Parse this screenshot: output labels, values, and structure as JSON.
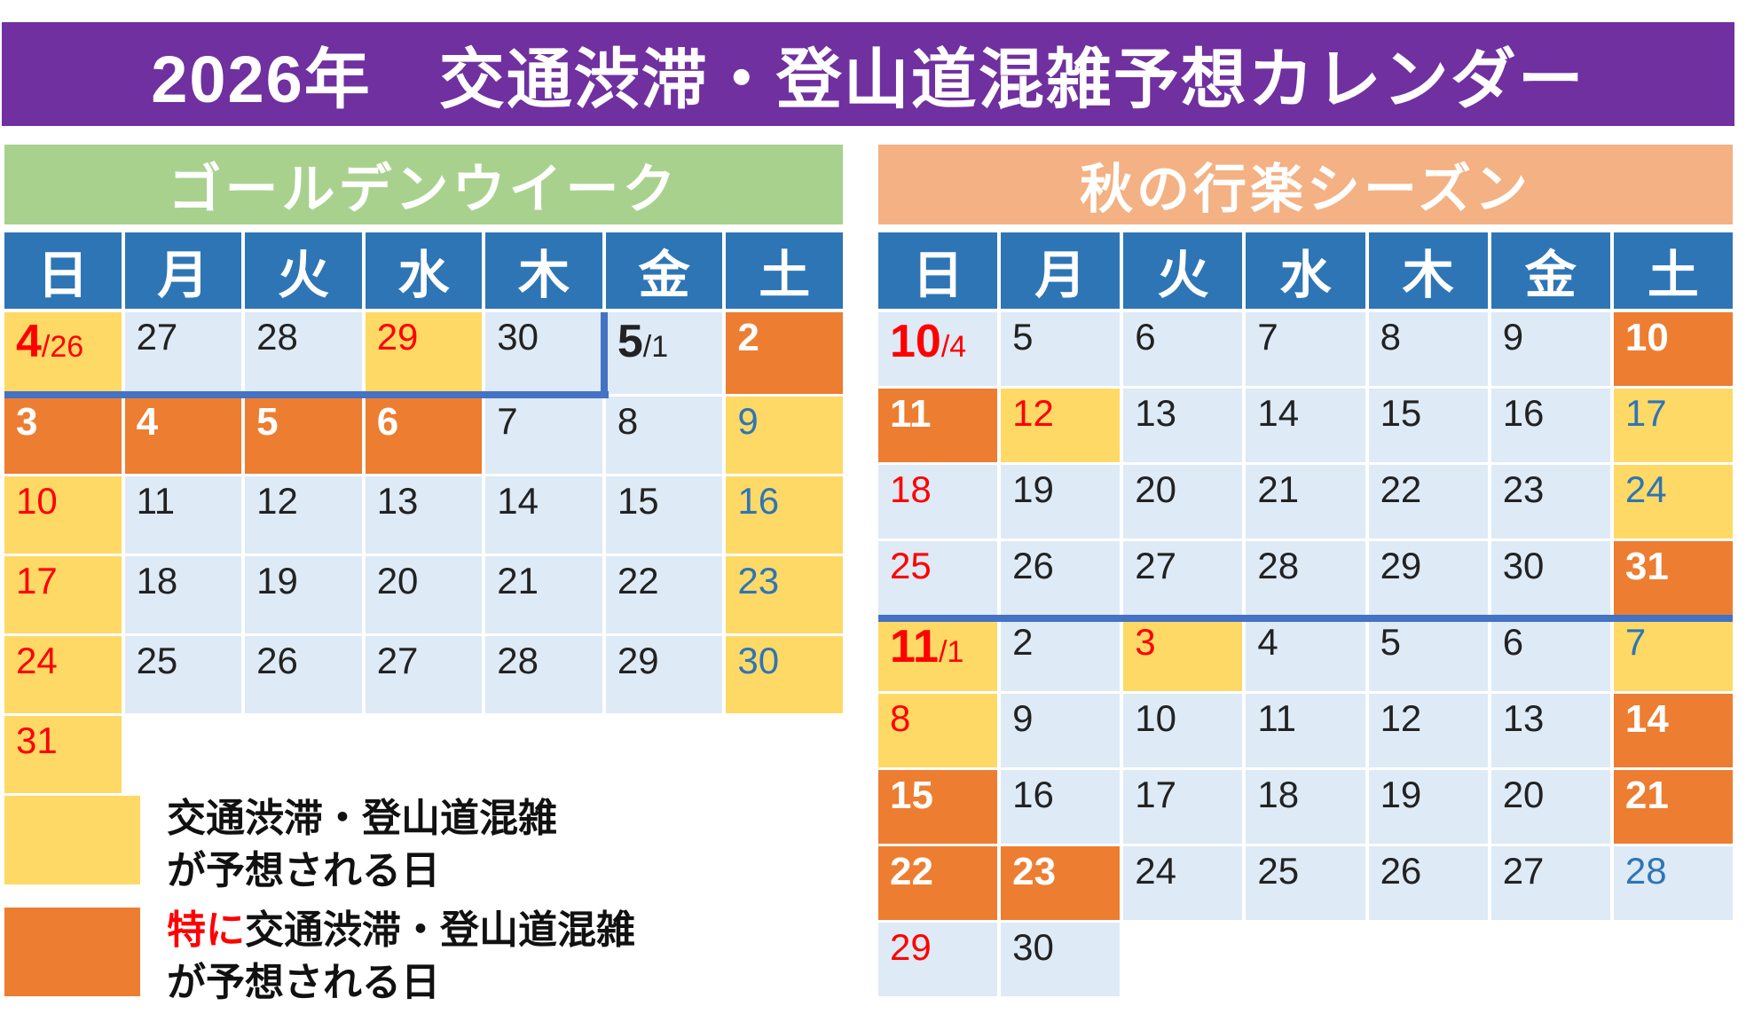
{
  "title": "2026年　交通渋滞・登山道混雑予想カレンダー",
  "weekdays": [
    "日",
    "月",
    "火",
    "水",
    "木",
    "金",
    "土"
  ],
  "colors": {
    "banner_purple": "#7030A0",
    "weekday_header_blue": "#2E75B6",
    "golden_week_green": "#A9D18E",
    "autumn_salmon": "#F4B183",
    "day_plain_blue": "#DEEAF6",
    "day_busy_yellow": "#FFD966",
    "day_peak_orange": "#ED7D31",
    "sunday_red": "#FF0000",
    "saturday_blue": "#2E75B6",
    "month_divider_blue": "#4472C4"
  },
  "calendars": [
    {
      "season_label": "ゴールデンウイーク",
      "rows": [
        [
          {
            "m": "4",
            "d": "/26",
            "bg": "busy",
            "fg": "red",
            "bold": true
          },
          {
            "d": "27",
            "bg": "plain",
            "fg": "black"
          },
          {
            "d": "28",
            "bg": "plain",
            "fg": "black"
          },
          {
            "d": "29",
            "bg": "busy",
            "fg": "red"
          },
          {
            "d": "30",
            "bg": "plain",
            "fg": "black"
          },
          {
            "m": "5",
            "d": "/1",
            "bg": "plain",
            "fg": "black",
            "bold": true
          },
          {
            "d": "2",
            "bg": "peak",
            "fg": "white",
            "bold": true
          }
        ],
        [
          {
            "d": "3",
            "bg": "peak",
            "fg": "white",
            "bold": true
          },
          {
            "d": "4",
            "bg": "peak",
            "fg": "white",
            "bold": true
          },
          {
            "d": "5",
            "bg": "peak",
            "fg": "white",
            "bold": true
          },
          {
            "d": "6",
            "bg": "peak",
            "fg": "white",
            "bold": true
          },
          {
            "d": "7",
            "bg": "plain",
            "fg": "black"
          },
          {
            "d": "8",
            "bg": "plain",
            "fg": "black"
          },
          {
            "d": "9",
            "bg": "busy",
            "fg": "blue"
          }
        ],
        [
          {
            "d": "10",
            "bg": "busy",
            "fg": "red"
          },
          {
            "d": "11",
            "bg": "plain",
            "fg": "black"
          },
          {
            "d": "12",
            "bg": "plain",
            "fg": "black"
          },
          {
            "d": "13",
            "bg": "plain",
            "fg": "black"
          },
          {
            "d": "14",
            "bg": "plain",
            "fg": "black"
          },
          {
            "d": "15",
            "bg": "plain",
            "fg": "black"
          },
          {
            "d": "16",
            "bg": "busy",
            "fg": "blue"
          }
        ],
        [
          {
            "d": "17",
            "bg": "busy",
            "fg": "red"
          },
          {
            "d": "18",
            "bg": "plain",
            "fg": "black"
          },
          {
            "d": "19",
            "bg": "plain",
            "fg": "black"
          },
          {
            "d": "20",
            "bg": "plain",
            "fg": "black"
          },
          {
            "d": "21",
            "bg": "plain",
            "fg": "black"
          },
          {
            "d": "22",
            "bg": "plain",
            "fg": "black"
          },
          {
            "d": "23",
            "bg": "busy",
            "fg": "blue"
          }
        ],
        [
          {
            "d": "24",
            "bg": "busy",
            "fg": "red"
          },
          {
            "d": "25",
            "bg": "plain",
            "fg": "black"
          },
          {
            "d": "26",
            "bg": "plain",
            "fg": "black"
          },
          {
            "d": "27",
            "bg": "plain",
            "fg": "black"
          },
          {
            "d": "28",
            "bg": "plain",
            "fg": "black"
          },
          {
            "d": "29",
            "bg": "plain",
            "fg": "black"
          },
          {
            "d": "30",
            "bg": "busy",
            "fg": "blue"
          }
        ],
        [
          {
            "d": "31",
            "bg": "busy",
            "fg": "red"
          },
          null,
          null,
          null,
          null,
          null,
          null
        ]
      ]
    },
    {
      "season_label": "秋の行楽シーズン",
      "rows": [
        [
          {
            "m": "10",
            "d": "/4",
            "bg": "plain",
            "fg": "red",
            "bold": true
          },
          {
            "d": "5",
            "bg": "plain",
            "fg": "black"
          },
          {
            "d": "6",
            "bg": "plain",
            "fg": "black"
          },
          {
            "d": "7",
            "bg": "plain",
            "fg": "black"
          },
          {
            "d": "8",
            "bg": "plain",
            "fg": "black"
          },
          {
            "d": "9",
            "bg": "plain",
            "fg": "black"
          },
          {
            "d": "10",
            "bg": "peak",
            "fg": "white",
            "bold": true
          }
        ],
        [
          {
            "d": "11",
            "bg": "peak",
            "fg": "white",
            "bold": true
          },
          {
            "d": "12",
            "bg": "busy",
            "fg": "red"
          },
          {
            "d": "13",
            "bg": "plain",
            "fg": "black"
          },
          {
            "d": "14",
            "bg": "plain",
            "fg": "black"
          },
          {
            "d": "15",
            "bg": "plain",
            "fg": "black"
          },
          {
            "d": "16",
            "bg": "plain",
            "fg": "black"
          },
          {
            "d": "17",
            "bg": "busy",
            "fg": "blue"
          }
        ],
        [
          {
            "d": "18",
            "bg": "plain",
            "fg": "red"
          },
          {
            "d": "19",
            "bg": "plain",
            "fg": "black"
          },
          {
            "d": "20",
            "bg": "plain",
            "fg": "black"
          },
          {
            "d": "21",
            "bg": "plain",
            "fg": "black"
          },
          {
            "d": "22",
            "bg": "plain",
            "fg": "black"
          },
          {
            "d": "23",
            "bg": "plain",
            "fg": "black"
          },
          {
            "d": "24",
            "bg": "busy",
            "fg": "blue"
          }
        ],
        [
          {
            "d": "25",
            "bg": "plain",
            "fg": "red"
          },
          {
            "d": "26",
            "bg": "plain",
            "fg": "black"
          },
          {
            "d": "27",
            "bg": "plain",
            "fg": "black"
          },
          {
            "d": "28",
            "bg": "plain",
            "fg": "black"
          },
          {
            "d": "29",
            "bg": "plain",
            "fg": "black"
          },
          {
            "d": "30",
            "bg": "plain",
            "fg": "black"
          },
          {
            "d": "31",
            "bg": "peak",
            "fg": "white",
            "bold": true
          }
        ],
        [
          {
            "m": "11",
            "d": "/1",
            "bg": "busy",
            "fg": "red",
            "bold": true
          },
          {
            "d": "2",
            "bg": "plain",
            "fg": "black"
          },
          {
            "d": "3",
            "bg": "busy",
            "fg": "red"
          },
          {
            "d": "4",
            "bg": "plain",
            "fg": "black"
          },
          {
            "d": "5",
            "bg": "plain",
            "fg": "black"
          },
          {
            "d": "6",
            "bg": "plain",
            "fg": "black"
          },
          {
            "d": "7",
            "bg": "busy",
            "fg": "blue"
          }
        ],
        [
          {
            "d": "8",
            "bg": "busy",
            "fg": "red"
          },
          {
            "d": "9",
            "bg": "plain",
            "fg": "black"
          },
          {
            "d": "10",
            "bg": "plain",
            "fg": "black"
          },
          {
            "d": "11",
            "bg": "plain",
            "fg": "black"
          },
          {
            "d": "12",
            "bg": "plain",
            "fg": "black"
          },
          {
            "d": "13",
            "bg": "plain",
            "fg": "black"
          },
          {
            "d": "14",
            "bg": "peak",
            "fg": "white",
            "bold": true
          }
        ],
        [
          {
            "d": "15",
            "bg": "peak",
            "fg": "white",
            "bold": true
          },
          {
            "d": "16",
            "bg": "plain",
            "fg": "black"
          },
          {
            "d": "17",
            "bg": "plain",
            "fg": "black"
          },
          {
            "d": "18",
            "bg": "plain",
            "fg": "black"
          },
          {
            "d": "19",
            "bg": "plain",
            "fg": "black"
          },
          {
            "d": "20",
            "bg": "plain",
            "fg": "black"
          },
          {
            "d": "21",
            "bg": "peak",
            "fg": "white",
            "bold": true
          }
        ],
        [
          {
            "d": "22",
            "bg": "peak",
            "fg": "white",
            "bold": true
          },
          {
            "d": "23",
            "bg": "peak",
            "fg": "white",
            "bold": true
          },
          {
            "d": "24",
            "bg": "plain",
            "fg": "black"
          },
          {
            "d": "25",
            "bg": "plain",
            "fg": "black"
          },
          {
            "d": "26",
            "bg": "plain",
            "fg": "black"
          },
          {
            "d": "27",
            "bg": "plain",
            "fg": "black"
          },
          {
            "d": "28",
            "bg": "plain",
            "fg": "blue"
          }
        ],
        [
          {
            "d": "29",
            "bg": "plain",
            "fg": "red"
          },
          {
            "d": "30",
            "bg": "plain",
            "fg": "black"
          },
          null,
          null,
          null,
          null,
          null
        ]
      ]
    }
  ],
  "legend": {
    "items": [
      {
        "swatch": "busy",
        "prefix": "",
        "text_line1": "交通渋滞・登山道混雑",
        "text_line2": "が予想される日"
      },
      {
        "swatch": "peak",
        "prefix": "特に",
        "text_line1": "交通渋滞・登山道混雑",
        "text_line2": "が予想される日"
      }
    ]
  }
}
